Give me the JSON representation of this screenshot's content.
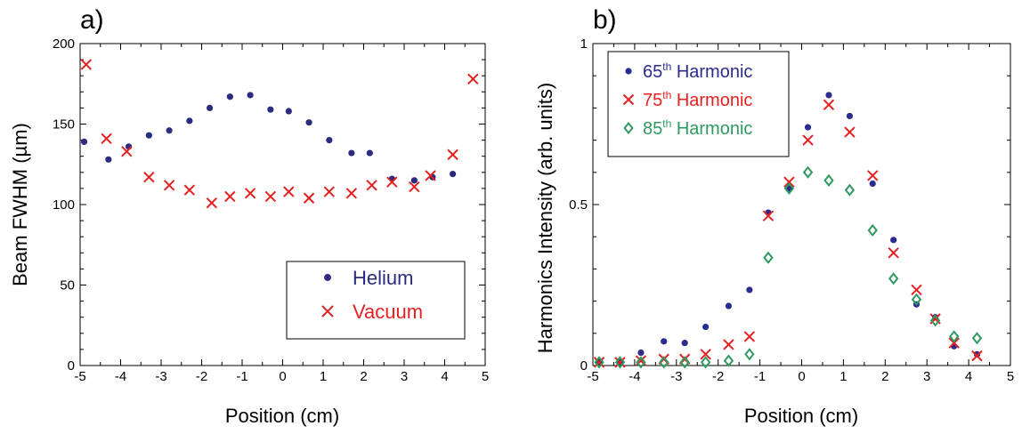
{
  "chart_data": [
    {
      "panel": "a)",
      "type": "scatter",
      "xlabel": "Position (cm)",
      "ylabel": "Beam FWHM (µm)",
      "xlim": [
        -5,
        5
      ],
      "ylim": [
        0,
        200
      ],
      "xticks": [
        "-5",
        "-4",
        "-3",
        "-2",
        "-1",
        "0",
        "1",
        "2",
        "3",
        "4",
        "5"
      ],
      "yticks": [
        "0",
        "50",
        "100",
        "150",
        "200"
      ],
      "legend_position": "bottom-right",
      "series": [
        {
          "name": "Helium",
          "marker": "dot",
          "color": "#2b2b80",
          "x": [
            -4.9,
            -4.3,
            -3.8,
            -3.3,
            -2.8,
            -2.3,
            -1.8,
            -1.3,
            -0.8,
            -0.3,
            0.15,
            0.65,
            1.15,
            1.7,
            2.15,
            2.7,
            3.25,
            3.7,
            4.2
          ],
          "y": [
            139,
            128,
            136,
            143,
            146,
            152,
            160,
            167,
            168,
            159,
            158,
            151,
            140,
            132,
            132,
            116,
            115,
            117,
            119
          ]
        },
        {
          "name": "Vacuum",
          "marker": "x",
          "color": "#e62020",
          "x": [
            -4.85,
            -4.35,
            -3.85,
            -3.3,
            -2.8,
            -2.3,
            -1.75,
            -1.3,
            -0.8,
            -0.3,
            0.15,
            0.65,
            1.15,
            1.7,
            2.2,
            2.7,
            3.25,
            3.65,
            4.2,
            4.7
          ],
          "y": [
            187,
            141,
            133,
            117,
            112,
            109,
            101,
            105,
            107,
            105,
            108,
            104,
            108,
            107,
            112,
            114,
            111,
            118,
            131,
            178
          ]
        }
      ]
    },
    {
      "panel": "b)",
      "type": "scatter",
      "xlabel": "Position (cm)",
      "ylabel": "Harmonics Intensity (arb. units)",
      "xlim": [
        -5,
        5
      ],
      "ylim": [
        0,
        1
      ],
      "xticks": [
        "-5",
        "-4",
        "-3",
        "-2",
        "-1",
        "0",
        "1",
        "2",
        "3",
        "4",
        "5"
      ],
      "yticks": [
        "0",
        "0.5",
        "1"
      ],
      "legend_position": "top-left",
      "series": [
        {
          "name": "65th Harmonic",
          "name_base": "65",
          "name_sup": "th",
          "name_rest": " Harmonic",
          "marker": "dot",
          "color": "#2b2b90",
          "x": [
            -4.85,
            -4.35,
            -3.85,
            -3.3,
            -2.8,
            -2.3,
            -1.75,
            -1.25,
            -0.8,
            -0.3,
            0.15,
            0.65,
            1.15,
            1.7,
            2.2,
            2.75,
            3.2,
            3.65,
            4.2
          ],
          "y": [
            0.01,
            0.01,
            0.04,
            0.075,
            0.07,
            0.12,
            0.185,
            0.235,
            0.475,
            0.55,
            0.74,
            0.84,
            0.775,
            0.565,
            0.39,
            0.19,
            0.15,
            0.06,
            0.035
          ]
        },
        {
          "name": "75th Harmonic",
          "name_base": "75",
          "name_sup": "th",
          "name_rest": " Harmonic",
          "marker": "x",
          "color": "#e62020",
          "x": [
            -4.85,
            -4.35,
            -3.85,
            -3.3,
            -2.8,
            -2.3,
            -1.75,
            -1.25,
            -0.8,
            -0.3,
            0.15,
            0.65,
            1.15,
            1.7,
            2.2,
            2.75,
            3.2,
            3.65,
            4.2
          ],
          "y": [
            0.01,
            0.01,
            0.015,
            0.02,
            0.02,
            0.035,
            0.065,
            0.09,
            0.465,
            0.57,
            0.7,
            0.81,
            0.725,
            0.59,
            0.35,
            0.235,
            0.145,
            0.07,
            0.03
          ]
        },
        {
          "name": "85th Harmonic",
          "name_base": "85",
          "name_sup": "th",
          "name_rest": " Harmonic",
          "marker": "diamond",
          "color": "#2e9960",
          "x": [
            -4.85,
            -4.35,
            -3.85,
            -3.3,
            -2.8,
            -2.3,
            -1.75,
            -1.25,
            -0.8,
            -0.3,
            0.15,
            0.65,
            1.15,
            1.7,
            2.2,
            2.75,
            3.2,
            3.65,
            4.2
          ],
          "y": [
            0.01,
            0.01,
            0.01,
            0.01,
            0.01,
            0.01,
            0.015,
            0.035,
            0.335,
            0.55,
            0.6,
            0.575,
            0.545,
            0.42,
            0.27,
            0.205,
            0.14,
            0.09,
            0.085
          ]
        }
      ]
    }
  ]
}
